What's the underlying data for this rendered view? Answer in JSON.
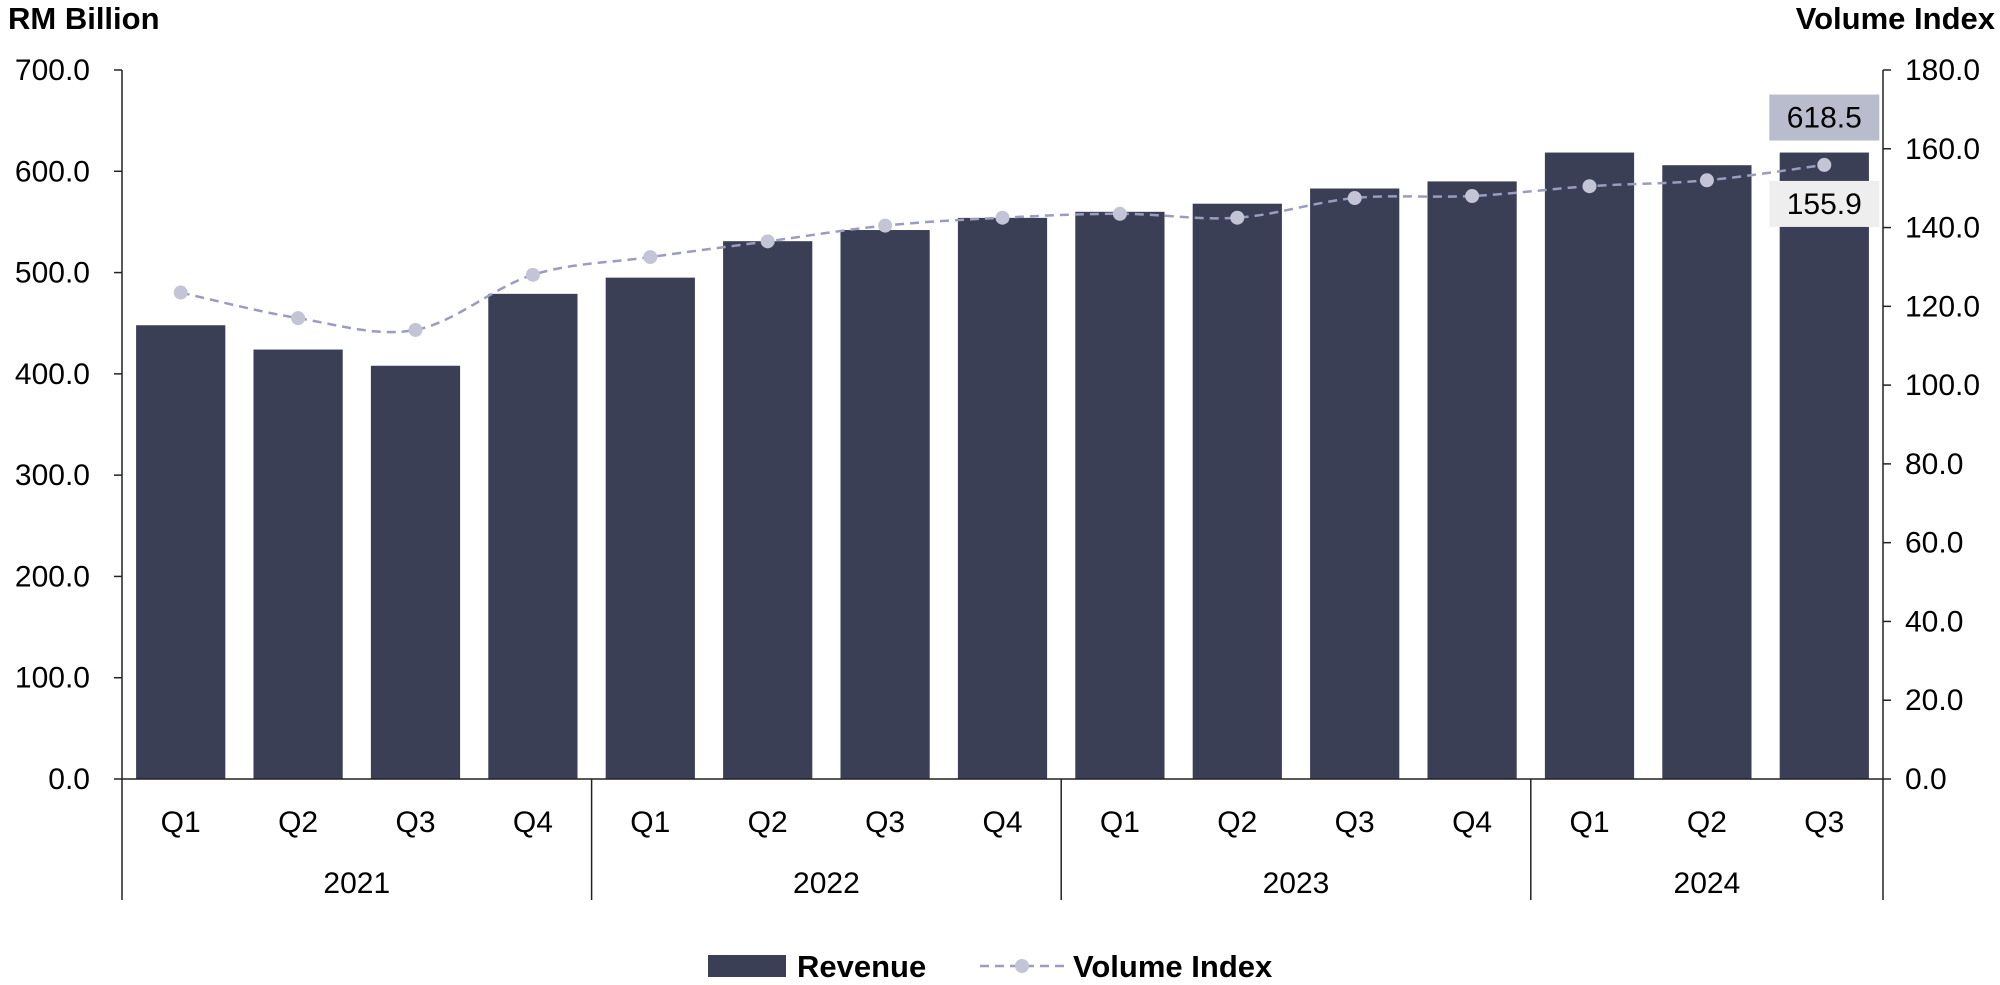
{
  "chart_data": {
    "type": "bar",
    "left_axis_title": "RM Billion",
    "right_axis_title": "Volume Index",
    "years": [
      {
        "label": "2021",
        "quarters": [
          "Q1",
          "Q2",
          "Q3",
          "Q4"
        ]
      },
      {
        "label": "2022",
        "quarters": [
          "Q1",
          "Q2",
          "Q3",
          "Q4"
        ]
      },
      {
        "label": "2023",
        "quarters": [
          "Q1",
          "Q2",
          "Q3",
          "Q4"
        ]
      },
      {
        "label": "2024",
        "quarters": [
          "Q1",
          "Q2",
          "Q3"
        ]
      }
    ],
    "left_ticks": [
      "0.0",
      "100.0",
      "200.0",
      "300.0",
      "400.0",
      "500.0",
      "600.0",
      "700.0"
    ],
    "right_ticks": [
      "0.0",
      "20.0",
      "40.0",
      "60.0",
      "80.0",
      "100.0",
      "120.0",
      "140.0",
      "160.0",
      "180.0"
    ],
    "ylim_left": [
      0,
      700
    ],
    "ylim_right": [
      0,
      180
    ],
    "series": [
      {
        "name": "Revenue",
        "type": "bar",
        "axis": "left",
        "color": "#3a3f56",
        "values": [
          448,
          424,
          408,
          479,
          495,
          531,
          542,
          554,
          560,
          568,
          583,
          590,
          618.5,
          606,
          618.5
        ]
      },
      {
        "name": "Volume Index",
        "type": "line",
        "axis": "right",
        "style": "dashed",
        "color": "#9a9cc0",
        "marker_color": "#c3c4d6",
        "values": [
          123.5,
          117,
          114,
          128,
          132.5,
          136.5,
          140.5,
          142.5,
          143.5,
          142.5,
          147.5,
          148,
          150.5,
          152,
          155.9
        ]
      }
    ],
    "callouts": [
      {
        "text": "618.5",
        "series": "Revenue",
        "index": 14,
        "fill": "#b9bccd"
      },
      {
        "text": "155.9",
        "series": "Volume Index",
        "index": 14,
        "fill": "#eeeeee"
      }
    ],
    "legend_placement": "bottom-center",
    "grid": false
  }
}
